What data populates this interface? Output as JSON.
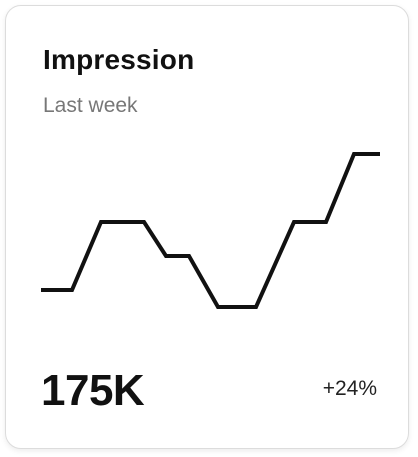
{
  "card": {
    "title": "Impression",
    "subtitle": "Last week",
    "value": "175K",
    "change": "+24%"
  },
  "colors": {
    "line": "#111111",
    "subtitle": "#777777",
    "border": "#dcdcdc"
  },
  "chart_data": {
    "type": "line",
    "title": "",
    "xlabel": "",
    "ylabel": "",
    "x": [
      1,
      2,
      3,
      4,
      5,
      6,
      7,
      8,
      9,
      10,
      11,
      12,
      13,
      14
    ],
    "values": [
      2.0,
      2.0,
      4.0,
      4.0,
      3.0,
      3.0,
      1.5,
      1.5,
      4.0,
      4.0,
      6.0,
      6.0,
      6.0,
      6.0
    ],
    "ylim": [
      0,
      6
    ],
    "grid": false,
    "legend": "none"
  }
}
